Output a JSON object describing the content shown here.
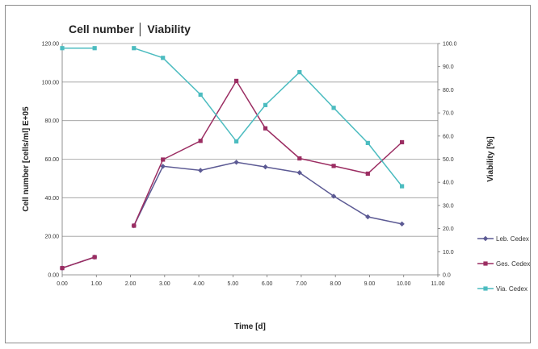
{
  "chart_data": {
    "type": "line",
    "title": "Cell number │ Viability",
    "xlabel": "Time [d]",
    "ylabel": "Cell number [cells/ml] E+05",
    "y2label": "Viability [%]",
    "xlim": [
      0,
      11
    ],
    "ylim": [
      0,
      120
    ],
    "y2lim": [
      0,
      100
    ],
    "x_ticks": [
      "0.00",
      "1.00",
      "2.00",
      "3.00",
      "4.00",
      "5.00",
      "6.00",
      "7.00",
      "8.00",
      "9.00",
      "10.00",
      "11.00"
    ],
    "y_ticks": [
      "0.00",
      "20.00",
      "40.00",
      "60.00",
      "80.00",
      "100.00",
      "120.00"
    ],
    "y2_ticks": [
      "0.0",
      "10.0",
      "20.0",
      "30.0",
      "40.0",
      "50.0",
      "60.0",
      "70.0",
      "80.0",
      "90.0",
      "100.0"
    ],
    "grid": true,
    "legend_position": "right",
    "series": [
      {
        "name": "Leb. Cedex",
        "axis": "left",
        "color": "#5c5a94",
        "marker": "diamond",
        "segments": [
          [
            [
              0,
              3.5
            ],
            [
              0.95,
              9.2
            ]
          ],
          [
            [
              2.1,
              25.5
            ],
            [
              2.95,
              56.3
            ],
            [
              4.05,
              54.2
            ],
            [
              5.1,
              58.4
            ],
            [
              5.95,
              56.0
            ],
            [
              6.95,
              53.0
            ],
            [
              7.95,
              40.8
            ],
            [
              8.95,
              30.1
            ],
            [
              9.95,
              26.4
            ]
          ]
        ]
      },
      {
        "name": "Ges. Cedex",
        "axis": "left",
        "color": "#9b2d62",
        "marker": "square",
        "segments": [
          [
            [
              0,
              3.5
            ],
            [
              0.95,
              9.2
            ]
          ],
          [
            [
              2.1,
              25.5
            ],
            [
              2.95,
              59.8
            ],
            [
              4.05,
              69.5
            ],
            [
              5.1,
              100.6
            ],
            [
              5.95,
              76.0
            ],
            [
              6.95,
              60.4
            ],
            [
              7.95,
              56.5
            ],
            [
              8.95,
              52.5
            ],
            [
              9.95,
              68.8
            ]
          ]
        ]
      },
      {
        "name": "Via. Cedex",
        "axis": "right",
        "color": "#4cbcc0",
        "marker": "square",
        "segments": [
          [
            [
              0,
              98.0
            ],
            [
              0.95,
              98.0
            ]
          ],
          [
            [
              2.1,
              98.0
            ],
            [
              2.95,
              93.8
            ],
            [
              4.05,
              77.9
            ],
            [
              5.1,
              57.7
            ],
            [
              5.95,
              73.4
            ],
            [
              6.95,
              87.6
            ],
            [
              7.95,
              72.2
            ],
            [
              8.95,
              57.0
            ],
            [
              9.95,
              38.3
            ]
          ]
        ]
      }
    ]
  }
}
